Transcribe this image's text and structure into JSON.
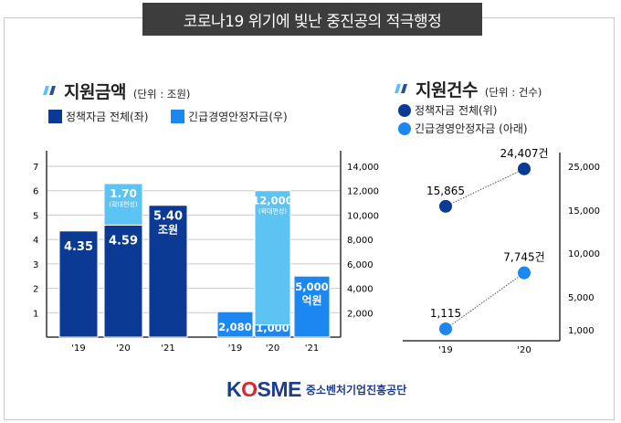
{
  "title": "코로나19 위기에 빛난 중진공의 적극행정",
  "colors": {
    "dark": "#0a3a94",
    "light": "#5cc3f2",
    "mid": "#1b87f1"
  },
  "left_panel": {
    "heading": "지원금액",
    "unit": "(단위 : 조원)",
    "legend": [
      "정책자금 전체(좌)",
      "긴급경영안정자금(우)"
    ]
  },
  "right_panel": {
    "heading": "지원건수",
    "unit": "(단위 : 건수)",
    "legend": [
      "정책자금 전체(위)",
      "긴급경영안정자금 (아래)"
    ]
  },
  "chart_data": [
    {
      "type": "bar",
      "title": "지원금액",
      "left_axis": {
        "ticks": [
          "1",
          "2",
          "3",
          "4",
          "5",
          "6",
          "7"
        ],
        "ylim": [
          0,
          7
        ],
        "unit": "조원"
      },
      "right_axis": {
        "ticks": [
          "2,000",
          "4,000",
          "6,000",
          "8,000",
          "10,000",
          "12,000",
          "14,000"
        ],
        "ylim": [
          0,
          14000
        ],
        "unit": "억원"
      },
      "groups": [
        {
          "series": "정책자금 전체(좌)",
          "axis": "left",
          "categories": [
            "'19",
            "'20",
            "'21"
          ],
          "values": [
            4.35,
            4.59,
            5.4
          ],
          "extra": [
            0,
            1.7,
            0
          ],
          "labels": [
            "4.35",
            "4.59",
            "5.40"
          ],
          "extra_labels": [
            "",
            "1.70",
            ""
          ],
          "extra_note": "(확대편성)",
          "last_suffix": "조원"
        },
        {
          "series": "긴급경영안정자금(우)",
          "axis": "right",
          "categories": [
            "'19",
            "'20",
            "'21"
          ],
          "values": [
            2080,
            1000,
            5000
          ],
          "extra": [
            0,
            11000,
            0
          ],
          "labels": [
            "2,080",
            "1,000",
            "5,000"
          ],
          "extra_labels": [
            "",
            "12,000",
            ""
          ],
          "extra_note": "(확대편성)",
          "last_suffix": "억원"
        }
      ]
    },
    {
      "type": "line",
      "title": "지원건수",
      "categories": [
        "'19",
        "'20"
      ],
      "y_ticks": [
        1000,
        5000,
        10000,
        15000,
        25000
      ],
      "y_tick_labels": [
        "1,000",
        "5,000",
        "10,000",
        "15,000",
        "25,000"
      ],
      "series": [
        {
          "name": "정책자금 전체(위)",
          "values": [
            15865,
            24407
          ],
          "labels": [
            "15,865",
            "24,407건"
          ]
        },
        {
          "name": "긴급경영안정자금 (아래)",
          "values": [
            1115,
            7745
          ],
          "labels": [
            "1,115",
            "7,745건"
          ]
        }
      ]
    }
  ],
  "logo": {
    "brand": "KOSME",
    "org": "중소벤처기업진흥공단"
  }
}
